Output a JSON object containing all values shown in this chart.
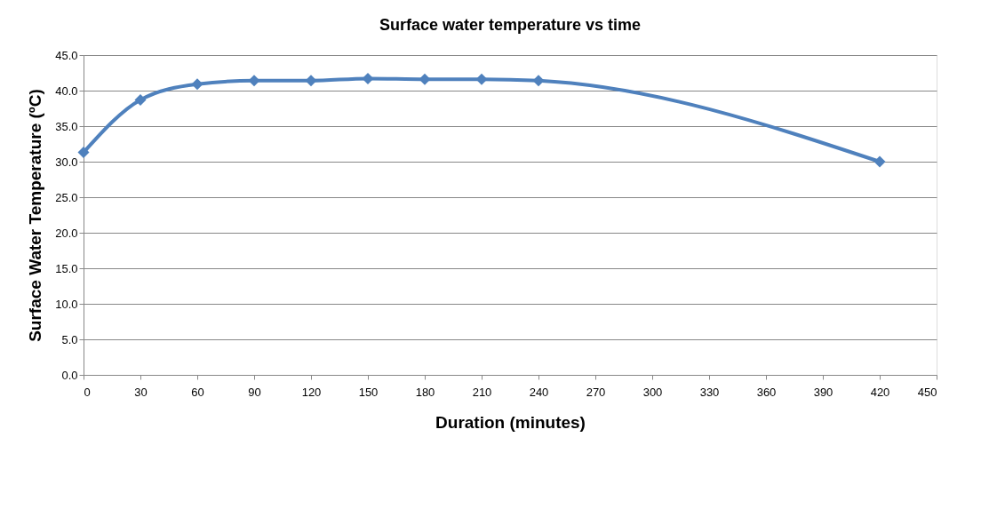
{
  "chart_data": {
    "type": "line",
    "title": "Surface water temperature vs time",
    "xlabel": "Duration (minutes)",
    "ylabel": "Surface Water Temperature (ºC)",
    "x": [
      0,
      30,
      60,
      90,
      120,
      150,
      180,
      210,
      240,
      420
    ],
    "series": [
      {
        "color": "#4f81bd",
        "values": [
          31.3,
          38.7,
          40.9,
          41.4,
          41.4,
          41.7,
          41.6,
          41.6,
          41.4,
          30.0
        ]
      }
    ],
    "xlim": [
      0,
      450
    ],
    "xticks": [
      0,
      30,
      60,
      90,
      120,
      150,
      180,
      210,
      240,
      270,
      300,
      330,
      360,
      390,
      420,
      450
    ],
    "ylim": [
      0,
      45
    ],
    "yticks": [
      {
        "value": 0,
        "label": "0.0"
      },
      {
        "value": 5,
        "label": "5.0"
      },
      {
        "value": 10,
        "label": "10.0"
      },
      {
        "value": 15,
        "label": "15.0"
      },
      {
        "value": 20,
        "label": "20.0"
      },
      {
        "value": 25,
        "label": "25.0"
      },
      {
        "value": 30,
        "label": "30.0"
      },
      {
        "value": 35,
        "label": "35.0"
      },
      {
        "value": 40,
        "label": "40.0"
      },
      {
        "value": 45,
        "label": "45.0"
      }
    ],
    "grid": "y",
    "marker": "diamond",
    "line_style": "solid"
  }
}
